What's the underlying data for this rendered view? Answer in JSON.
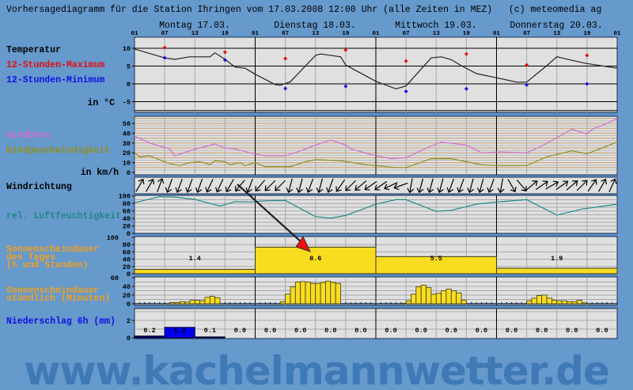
{
  "header": {
    "title": "Vorhersagediagramm für die Station Ihringen vom 17.03.2008 12:00 Uhr (alle Zeiten in MEZ)   (c) meteomedia ag"
  },
  "days": [
    "Montag 17.03.",
    "Dienstag 18.03.",
    "Mittwoch 19.03.",
    "Donnerstag 20.03."
  ],
  "hour_ticks": [
    "01",
    "07",
    "13",
    "19",
    "01",
    "07",
    "13",
    "19",
    "01",
    "07",
    "13",
    "19",
    "01",
    "07",
    "13",
    "19",
    "01"
  ],
  "labels": {
    "temperature": "Temperatur",
    "max": "12-Stunden-Maximum",
    "min": "12-Stunden-Minimum",
    "temp_unit": "in °C",
    "gusts": "Windböen",
    "speed": "Windgeschwindigkeit",
    "wind_unit": "in km/h",
    "direction": "Windrichtung",
    "humidity": "rel. Luftfeuchtigkeit",
    "sun_day_1": "Sonnenscheindauer",
    "sun_day_2": "des Tages",
    "sun_day_3": "(% und Stunden)",
    "sun_hr_1": "Sonnenscheindauer",
    "sun_hr_2": "stündlich (Minuten)",
    "precip": "Niederschlag 6h (mm)"
  },
  "colors": {
    "background": "#6699cc",
    "panel": "#e0e0e0",
    "temperature": "#222222",
    "max": "#e01010",
    "min": "#1010e0",
    "gusts": "#d070d0",
    "speed": "#909020",
    "humidity": "#208888",
    "sunshine": "#f8dc20",
    "precip": "#0000ee",
    "label_orange": "#f0a020"
  },
  "footer": {
    "logo_text": "www.kachelmannwetter.de"
  },
  "chart_data": {
    "type": "meteogram",
    "x_range": [
      "17.03. 01:00",
      "21.03. 01:00"
    ],
    "grid": true,
    "temperature": {
      "unit": "°C",
      "ylim": [
        -8,
        13
      ],
      "yticks": [
        "10",
        "5",
        "0",
        "-5"
      ],
      "ytick_values": [
        10,
        5,
        0,
        -5
      ],
      "series": [
        [
          "17.03. 01:00",
          9.8
        ],
        [
          "17.03. 07:00",
          7.3
        ],
        [
          "17.03. 09:00",
          6.9
        ],
        [
          "17.03. 12:00",
          7.6
        ],
        [
          "17.03. 16:00",
          7.6
        ],
        [
          "17.03. 17:00",
          8.7
        ],
        [
          "17.03. 19:00",
          6.9
        ],
        [
          "17.03. 21:00",
          4.7
        ],
        [
          "17.03. 23:00",
          4.4
        ],
        [
          "18.03. 01:00",
          2.7
        ],
        [
          "18.03. 05:00",
          -0.2
        ],
        [
          "18.03. 06:00",
          -0.4
        ],
        [
          "18.03. 08:00",
          0.6
        ],
        [
          "18.03. 13:00",
          8.0
        ],
        [
          "18.03. 14:00",
          8.4
        ],
        [
          "18.03. 18:00",
          7.6
        ],
        [
          "18.03. 19:00",
          5.3
        ],
        [
          "19.03. 01:00",
          0.7
        ],
        [
          "19.03. 05:00",
          -1.4
        ],
        [
          "19.03. 07:00",
          -0.6
        ],
        [
          "19.03. 12:00",
          7.3
        ],
        [
          "19.03. 14:00",
          7.6
        ],
        [
          "19.03. 16:00",
          6.8
        ],
        [
          "19.03. 18:00",
          5.1
        ],
        [
          "19.03. 21:00",
          2.9
        ],
        [
          "20.03. 01:00",
          1.7
        ],
        [
          "20.03. 05:00",
          0.5
        ],
        [
          "20.03. 07:00",
          0.5
        ],
        [
          "20.03. 11:00",
          5.1
        ],
        [
          "20.03. 13:00",
          7.6
        ],
        [
          "20.03. 17:00",
          6.3
        ],
        [
          "20.03. 19:00",
          5.7
        ],
        [
          "21.03. 01:00",
          4.4
        ]
      ],
      "max_12h": [
        [
          "17.03. 07:00",
          10.2
        ],
        [
          "17.03. 19:00",
          8.9
        ],
        [
          "18.03. 07:00",
          7.1
        ],
        [
          "18.03. 19:00",
          9.5
        ],
        [
          "19.03. 07:00",
          6.4
        ],
        [
          "19.03. 19:00",
          8.4
        ],
        [
          "20.03. 07:00",
          5.3
        ],
        [
          "20.03. 19:00",
          8.0
        ]
      ],
      "min_12h": [
        [
          "17.03. 07:00",
          7.3
        ],
        [
          "17.03. 19:00",
          6.7
        ],
        [
          "18.03. 07:00",
          -1.3
        ],
        [
          "18.03. 19:00",
          -0.7
        ],
        [
          "19.03. 07:00",
          -2.1
        ],
        [
          "19.03. 19:00",
          -1.4
        ],
        [
          "20.03. 07:00",
          -0.3
        ],
        [
          "20.03. 19:00",
          0.0
        ]
      ]
    },
    "wind": {
      "unit": "km/h",
      "ylim": [
        0,
        57
      ],
      "yticks": [
        "50",
        "40",
        "30",
        "20",
        "10",
        "0"
      ],
      "ytick_values": [
        50,
        40,
        30,
        20,
        10,
        0
      ],
      "gusts": [
        [
          "17.03. 01:00",
          37
        ],
        [
          "17.03. 04:00",
          30
        ],
        [
          "17.03. 06:00",
          27
        ],
        [
          "17.03. 08:00",
          24
        ],
        [
          "17.03. 09:00",
          17
        ],
        [
          "17.03. 12:00",
          22
        ],
        [
          "17.03. 14:00",
          25
        ],
        [
          "17.03. 17:00",
          29
        ],
        [
          "17.03. 19:00",
          25
        ],
        [
          "17.03. 21:00",
          24
        ],
        [
          "18.03. 00:00",
          20
        ],
        [
          "18.03. 03:00",
          17
        ],
        [
          "18.03. 07:00",
          17
        ],
        [
          "18.03. 10:00",
          22
        ],
        [
          "18.03. 13:00",
          28
        ],
        [
          "18.03. 16:00",
          33
        ],
        [
          "18.03. 19:00",
          28
        ],
        [
          "18.03. 20:00",
          24
        ],
        [
          "19.03. 01:00",
          17
        ],
        [
          "19.03. 04:00",
          14
        ],
        [
          "19.03. 07:00",
          15
        ],
        [
          "19.03. 12:00",
          27
        ],
        [
          "19.03. 14:00",
          31
        ],
        [
          "19.03. 19:00",
          28
        ],
        [
          "19.03. 22:00",
          20
        ],
        [
          "20.03. 02:00",
          21
        ],
        [
          "20.03. 07:00",
          20
        ],
        [
          "20.03. 10:00",
          27
        ],
        [
          "20.03. 16:00",
          44
        ],
        [
          "20.03. 19:00",
          39
        ],
        [
          "20.03. 20:00",
          44
        ],
        [
          "20.03. 23:00",
          50
        ],
        [
          "21.03. 01:00",
          55
        ]
      ],
      "speed": [
        [
          "17.03. 01:00",
          20
        ],
        [
          "17.03. 02:00",
          16
        ],
        [
          "17.03. 04:00",
          17
        ],
        [
          "17.03. 06:00",
          13
        ],
        [
          "17.03. 08:00",
          9
        ],
        [
          "17.03. 10:00",
          7
        ],
        [
          "17.03. 12:00",
          10
        ],
        [
          "17.03. 14:00",
          11
        ],
        [
          "17.03. 16:00",
          8
        ],
        [
          "17.03. 17:00",
          12
        ],
        [
          "17.03. 19:00",
          11
        ],
        [
          "17.03. 20:00",
          8
        ],
        [
          "17.03. 22:00",
          10
        ],
        [
          "17.03. 23:00",
          7
        ],
        [
          "18.03. 01:00",
          10
        ],
        [
          "18.03. 03:00",
          6
        ],
        [
          "18.03. 08:00",
          6
        ],
        [
          "18.03. 11:00",
          11
        ],
        [
          "18.03. 13:00",
          13
        ],
        [
          "18.03. 18:00",
          12
        ],
        [
          "18.03. 23:00",
          8
        ],
        [
          "19.03. 05:00",
          5
        ],
        [
          "19.03. 07:00",
          5
        ],
        [
          "19.03. 12:00",
          14
        ],
        [
          "19.03. 16:00",
          14
        ],
        [
          "19.03. 22:00",
          8
        ],
        [
          "20.03. 01:00",
          7
        ],
        [
          "20.03. 07:00",
          7
        ],
        [
          "20.03. 11:00",
          16
        ],
        [
          "20.03. 16:00",
          22
        ],
        [
          "20.03. 19:00",
          19
        ],
        [
          "21.03. 01:00",
          31
        ]
      ]
    },
    "wind_direction": {
      "interval_hours": 2,
      "first": "17.03. 02:00",
      "unit": "arrow heading in degrees (0 = up)",
      "values": [
        30,
        30,
        20,
        200,
        200,
        200,
        200,
        205,
        205,
        210,
        220,
        200,
        220,
        225,
        225,
        195,
        195,
        200,
        195,
        200,
        215,
        225,
        230,
        235,
        235,
        245,
        250,
        190,
        195,
        195,
        195,
        200,
        200,
        195,
        195,
        200,
        190,
        150,
        140,
        50,
        55,
        60,
        55,
        50,
        45,
        35,
        30,
        25
      ]
    },
    "humidity": {
      "unit": "%",
      "ylim": [
        0,
        100
      ],
      "yticks": [
        "100",
        "80",
        "60",
        "40",
        "20",
        "0"
      ],
      "ytick_values": [
        100,
        80,
        60,
        40,
        20,
        0
      ],
      "series": [
        [
          "17.03. 01:00",
          82
        ],
        [
          "17.03. 06:00",
          98
        ],
        [
          "17.03. 09:00",
          97
        ],
        [
          "17.03. 13:00",
          91
        ],
        [
          "17.03. 18:00",
          73
        ],
        [
          "17.03. 21:00",
          85
        ],
        [
          "18.03. 00:00",
          84
        ],
        [
          "18.03. 03:00",
          87
        ],
        [
          "18.03. 07:00",
          88
        ],
        [
          "18.03. 13:00",
          45
        ],
        [
          "18.03. 16:00",
          41
        ],
        [
          "18.03. 19:00",
          48
        ],
        [
          "19.03. 01:00",
          78
        ],
        [
          "19.03. 05:00",
          90
        ],
        [
          "19.03. 07:00",
          90
        ],
        [
          "19.03. 13:00",
          59
        ],
        [
          "19.03. 16:00",
          62
        ],
        [
          "19.03. 21:00",
          78
        ],
        [
          "20.03. 01:00",
          84
        ],
        [
          "20.03. 07:00",
          90
        ],
        [
          "20.03. 13:00",
          49
        ],
        [
          "20.03. 18:00",
          65
        ],
        [
          "21.03. 01:00",
          78
        ]
      ]
    },
    "sunshine_daily": {
      "unit": "% und Stunden",
      "ylim": [
        0,
        100
      ],
      "yticks": [
        "100",
        "80",
        "60",
        "40",
        "20",
        "0"
      ],
      "ytick_values": [
        100,
        80,
        60,
        40,
        20,
        0
      ],
      "days": [
        {
          "hours": "1.4",
          "percent": 12
        },
        {
          "hours": "8.6",
          "percent": 73
        },
        {
          "hours": "5.5",
          "percent": 47
        },
        {
          "hours": "1.9",
          "percent": 15
        }
      ]
    },
    "sunshine_hourly": {
      "unit": "Minuten",
      "ylim": [
        0,
        60
      ],
      "yticks": [
        "60",
        "40",
        "20",
        "0"
      ],
      "ytick_values": [
        60,
        40,
        20,
        0
      ],
      "days": [
        {
          "date": "17.03.",
          "start_hour": 8,
          "minutes": [
            3,
            3,
            5,
            4,
            8,
            8,
            7,
            15,
            17,
            14
          ]
        },
        {
          "date": "18.03.",
          "start_hour": 6,
          "minutes": [
            5,
            22,
            39,
            50,
            51,
            50,
            47,
            47,
            49,
            52,
            49,
            47
          ]
        },
        {
          "date": "19.03.",
          "start_hour": 6,
          "minutes": [
            1,
            7,
            22,
            39,
            43,
            37,
            22,
            24,
            30,
            34,
            30,
            25,
            8
          ]
        },
        {
          "date": "20.03.",
          "start_hour": 7,
          "minutes": [
            7,
            13,
            19,
            20,
            13,
            8,
            7,
            7,
            5,
            5,
            8,
            2
          ]
        }
      ]
    },
    "precipitation_6h": {
      "unit": "mm",
      "ylim": [
        0,
        3
      ],
      "yticks": [
        "2",
        "0"
      ],
      "ytick_values": [
        2,
        0
      ],
      "values": [
        0.2,
        1.2,
        0.1,
        0.0,
        0.0,
        0.0,
        0.0,
        0.0,
        0.0,
        0.0,
        0.0,
        0.0,
        0.0,
        0.0,
        0.0,
        0.0
      ],
      "labels": [
        "0.2",
        "1.2",
        "0.1",
        "0.0",
        "0.0",
        "0.0",
        "0.0",
        "0.0",
        "0.0",
        "0.0",
        "0.0",
        "0.0",
        "0.0",
        "0.0",
        "0.0",
        "0.0"
      ]
    }
  }
}
